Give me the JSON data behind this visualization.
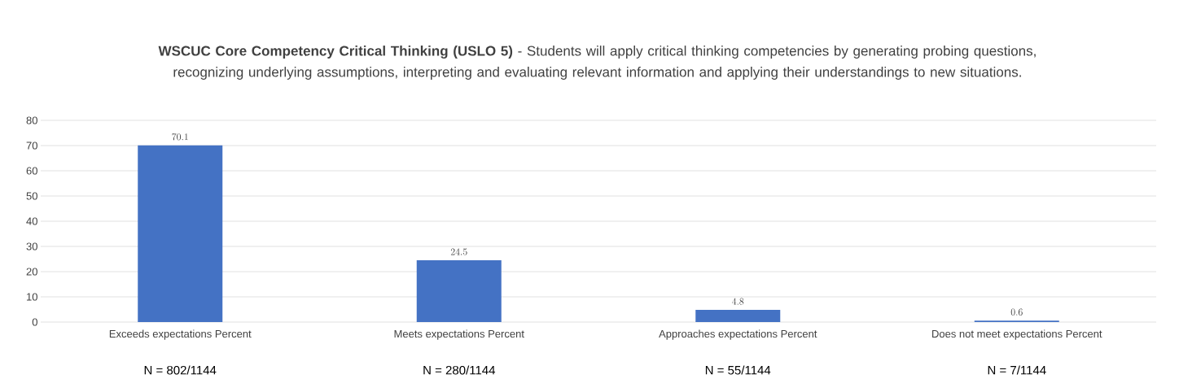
{
  "chart_data": {
    "type": "bar",
    "title": "**WSCUC Core Competency Critical Thinking (USLO 5)** - Students will apply critical thinking competencies by generating probing questions, recognizing underlying assumptions, interpreting and evaluating relevant information and applying their understandings to new situations.",
    "categories": [
      "Exceeds expectations Percent",
      "Meets expectations Percent",
      "Approaches expectations Percent",
      "Does not meet expectations Percent"
    ],
    "values": [
      70.1,
      24.5,
      4.8,
      0.6
    ],
    "color": "#4472c4",
    "ylim": [
      0,
      80
    ],
    "yticks": [
      0,
      10,
      20,
      30,
      40,
      50,
      60,
      70,
      80
    ],
    "grid": "y",
    "data_labels": true,
    "annotations": [
      "N = 802/1144",
      "N = 280/1144",
      "N = 55/1144",
      "N = 7/1144"
    ]
  }
}
